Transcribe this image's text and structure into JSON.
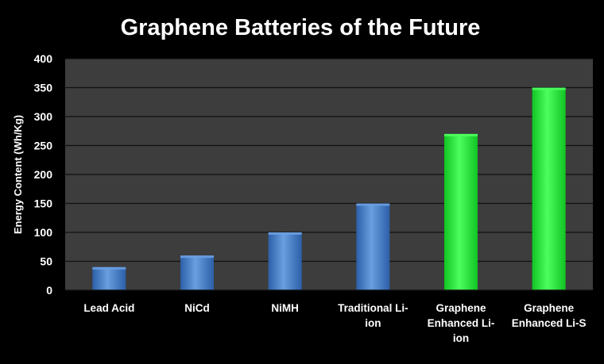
{
  "chart_data": {
    "type": "bar",
    "title": "Graphene Batteries of the Future",
    "ylabel": "Energy Content (Wh/Kg)",
    "xlabel": "",
    "categories": [
      [
        "Lead Acid"
      ],
      [
        "NiCd"
      ],
      [
        "NiMH"
      ],
      [
        "Traditional Li-",
        "ion"
      ],
      [
        "Graphene",
        "Enhanced Li-",
        "ion"
      ],
      [
        "Graphene",
        "Enhanced Li-S"
      ]
    ],
    "values": [
      40,
      60,
      100,
      150,
      270,
      350
    ],
    "ylim": [
      0,
      400
    ],
    "yticks": [
      0,
      50,
      100,
      150,
      200,
      250,
      300,
      350,
      400
    ],
    "grid": true,
    "colors": {
      "background": "#000000",
      "plot_area": "#3d3d3d",
      "grid": "#111111",
      "text": "#ffffff",
      "bar_blue_light": "#6a9fe0",
      "bar_blue_dark": "#2c5fa8",
      "bar_green_light": "#4dff5e",
      "bar_green_dark": "#12c423"
    },
    "bar_color_keys": [
      "blue",
      "blue",
      "blue",
      "blue",
      "green",
      "green"
    ]
  }
}
